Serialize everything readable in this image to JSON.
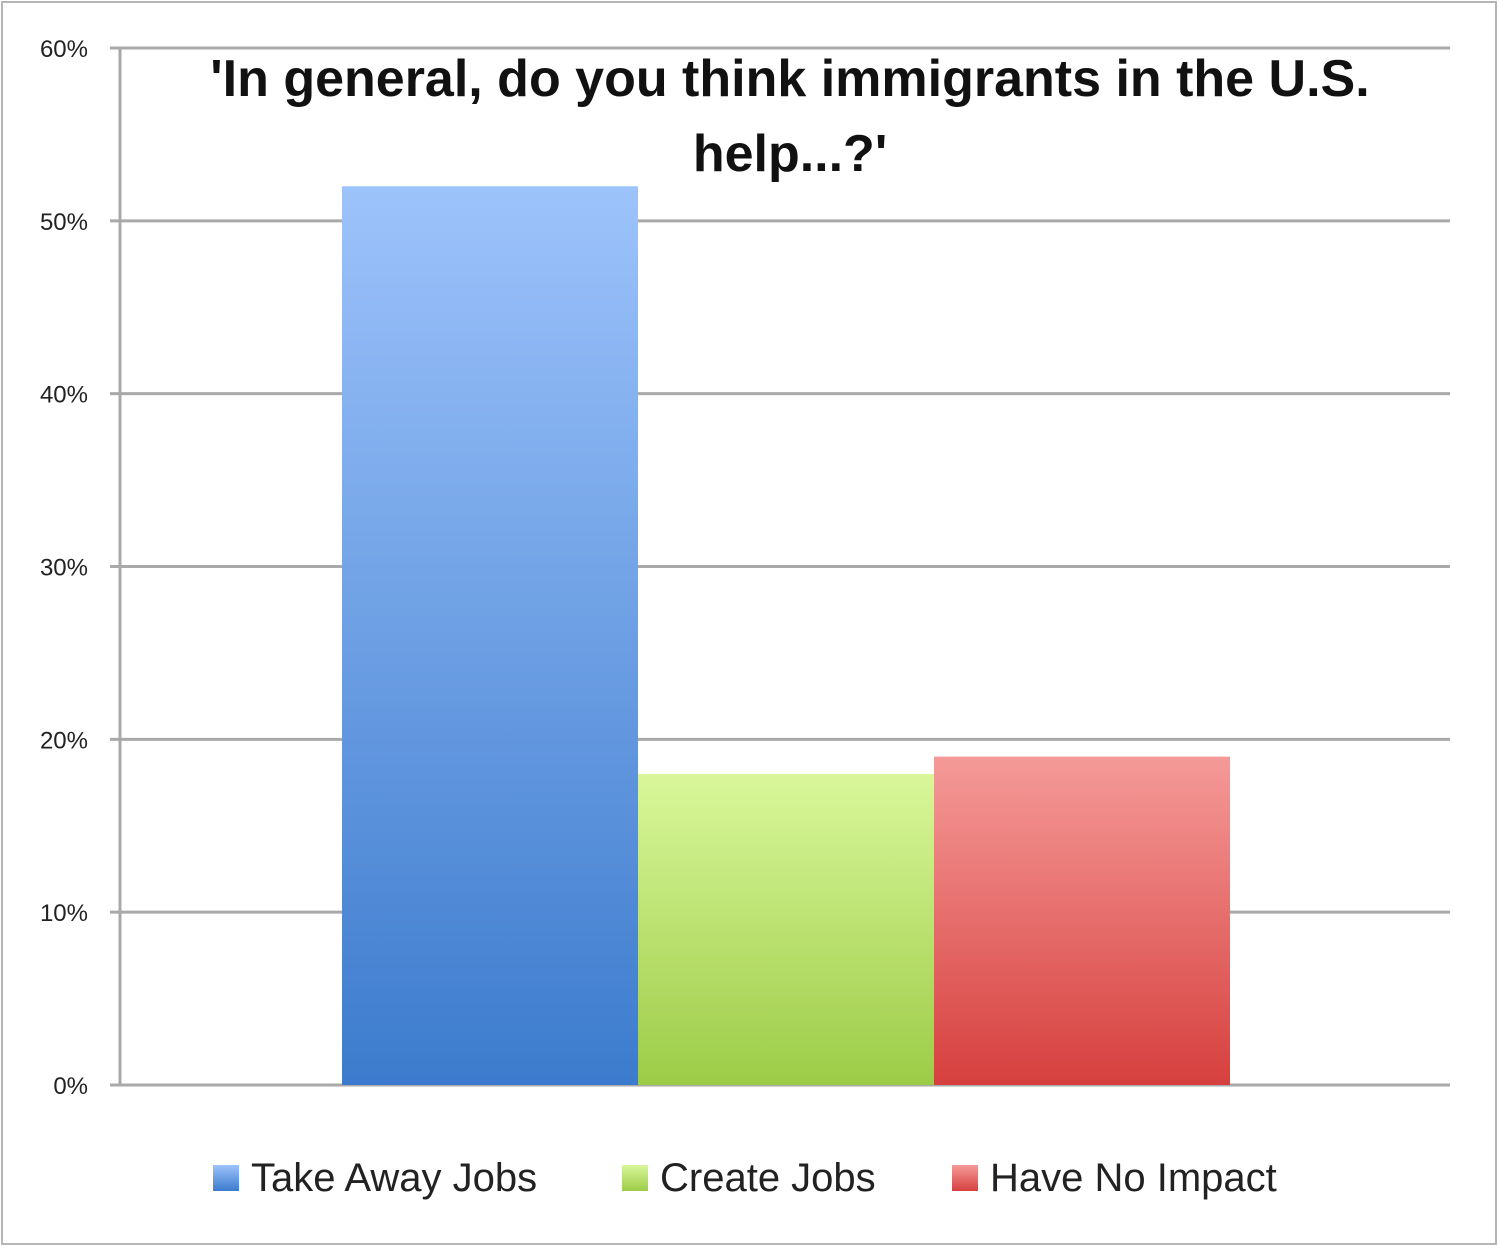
{
  "chart_data": {
    "type": "bar",
    "title": "'In general, do you think immigrants in the U.S. help...?'",
    "xlabel": "",
    "ylabel": "",
    "ylim": [
      0,
      60
    ],
    "yticks": [
      0,
      10,
      20,
      30,
      40,
      50,
      60
    ],
    "ytick_labels": [
      "0%",
      "10%",
      "20%",
      "30%",
      "40%",
      "50%",
      "60%"
    ],
    "grid": true,
    "legend_position": "bottom",
    "series": [
      {
        "name": "Take Away Jobs",
        "values": [
          52
        ],
        "color_top": "#9dc3fb",
        "color_bottom": "#3c7bcd"
      },
      {
        "name": "Create Jobs",
        "values": [
          18
        ],
        "color_top": "#d9f79a",
        "color_bottom": "#9ccc47"
      },
      {
        "name": "Have No Impact",
        "values": [
          19
        ],
        "color_top": "#f59a98",
        "color_bottom": "#d6403e"
      }
    ]
  }
}
